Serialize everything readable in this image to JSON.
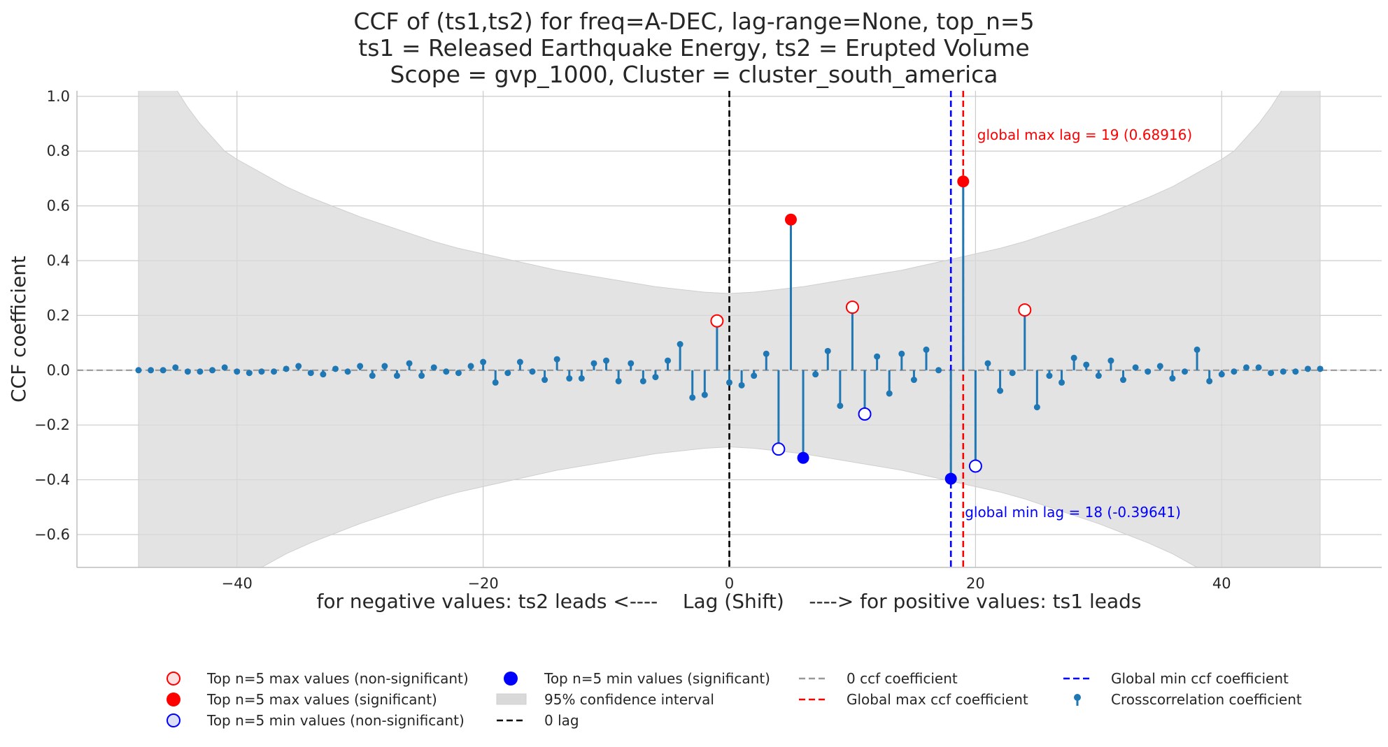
{
  "chart_data": {
    "type": "stem",
    "title_lines": [
      "CCF of (ts1,ts2) for freq=A-DEC, lag-range=None, top_n=5",
      "ts1 = Released Earthquake Energy, ts2 = Erupted Volume",
      "Scope = gvp_1000, Cluster = cluster_south_america"
    ],
    "xlabel": "for negative values: ts2 leads <----    Lag (Shift)    ----> for positive values: ts1 leads",
    "ylabel": "CCF coefficient",
    "xlim": [
      -53,
      53
    ],
    "ylim": [
      -0.72,
      1.02
    ],
    "xticks": [
      -40,
      -20,
      0,
      20,
      40
    ],
    "xtick_labels": [
      "−40",
      "−20",
      "0",
      "20",
      "40"
    ],
    "yticks": [
      -0.6,
      -0.4,
      -0.2,
      0.0,
      0.2,
      0.4,
      0.6,
      0.8,
      1.0
    ],
    "ytick_labels": [
      "−0.6",
      "−0.4",
      "−0.2",
      "0.0",
      "0.2",
      "0.4",
      "0.6",
      "0.8",
      "1.0"
    ],
    "grid": true,
    "lags": [
      -48,
      -47,
      -46,
      -45,
      -44,
      -43,
      -42,
      -41,
      -40,
      -39,
      -38,
      -37,
      -36,
      -35,
      -34,
      -33,
      -32,
      -31,
      -30,
      -29,
      -28,
      -27,
      -26,
      -25,
      -24,
      -23,
      -22,
      -21,
      -20,
      -19,
      -18,
      -17,
      -16,
      -15,
      -14,
      -13,
      -12,
      -11,
      -10,
      -9,
      -8,
      -7,
      -6,
      -5,
      -4,
      -3,
      -2,
      -1,
      0,
      1,
      2,
      3,
      4,
      5,
      6,
      7,
      8,
      9,
      10,
      11,
      12,
      13,
      14,
      15,
      16,
      17,
      18,
      19,
      20,
      21,
      22,
      23,
      24,
      25,
      26,
      27,
      28,
      29,
      30,
      31,
      32,
      33,
      34,
      35,
      36,
      37,
      38,
      39,
      40,
      41,
      42,
      43,
      44,
      45,
      46,
      47,
      48
    ],
    "ccf": [
      0.0,
      0.0,
      0.0,
      0.01,
      -0.005,
      -0.005,
      0.0,
      0.01,
      -0.005,
      -0.01,
      -0.005,
      -0.005,
      0.005,
      0.015,
      -0.01,
      -0.015,
      0.005,
      -0.005,
      0.015,
      -0.02,
      0.015,
      -0.02,
      0.025,
      -0.02,
      0.01,
      -0.005,
      -0.01,
      0.015,
      0.03,
      -0.045,
      -0.01,
      0.03,
      -0.005,
      -0.035,
      0.04,
      -0.03,
      -0.03,
      0.025,
      0.035,
      -0.04,
      0.025,
      -0.04,
      -0.025,
      0.035,
      0.095,
      -0.1,
      -0.09,
      0.18,
      -0.045,
      -0.055,
      -0.02,
      0.06,
      -0.288,
      0.55,
      -0.32,
      -0.015,
      0.07,
      -0.13,
      0.23,
      -0.16,
      0.05,
      -0.085,
      0.06,
      -0.035,
      0.075,
      0.0,
      -0.39641,
      0.68916,
      -0.35,
      0.025,
      -0.075,
      -0.01,
      0.22,
      -0.135,
      -0.02,
      -0.045,
      0.045,
      0.02,
      -0.02,
      0.035,
      -0.035,
      0.01,
      -0.005,
      0.015,
      -0.03,
      -0.005,
      0.075,
      -0.04,
      -0.015,
      -0.005,
      0.01,
      0.01,
      -0.01,
      -0.005,
      -0.005,
      0.005,
      0.005
    ],
    "confidence_interval": {
      "lags": [
        -48,
        -47,
        -46,
        -45,
        -44,
        -43,
        -42,
        -41,
        -40,
        -38,
        -36,
        -34,
        -32,
        -30,
        -28,
        -26,
        -24,
        -22,
        -20,
        -18,
        -16,
        -14,
        -12,
        -10,
        -8,
        -6,
        -4,
        -2,
        0,
        2,
        4,
        6,
        8,
        10,
        12,
        14,
        16,
        18,
        20,
        22,
        24,
        26,
        28,
        30,
        32,
        34,
        36,
        38,
        40,
        41,
        42,
        43,
        44,
        45,
        46,
        47,
        48
      ],
      "upper": [
        1.5,
        1.5,
        1.2,
        1.03,
        0.96,
        0.9,
        0.85,
        0.8,
        0.77,
        0.72,
        0.67,
        0.63,
        0.595,
        0.56,
        0.53,
        0.5,
        0.47,
        0.445,
        0.425,
        0.405,
        0.385,
        0.365,
        0.35,
        0.335,
        0.32,
        0.305,
        0.295,
        0.285,
        0.28,
        0.285,
        0.295,
        0.305,
        0.32,
        0.335,
        0.35,
        0.365,
        0.385,
        0.405,
        0.425,
        0.445,
        0.47,
        0.5,
        0.53,
        0.56,
        0.595,
        0.63,
        0.67,
        0.72,
        0.77,
        0.8,
        0.85,
        0.9,
        0.96,
        1.03,
        1.2,
        1.5,
        1.5
      ]
    },
    "top_max_nonsignificant": [
      {
        "lag": -1,
        "value": 0.18
      },
      {
        "lag": 10,
        "value": 0.23
      },
      {
        "lag": 24,
        "value": 0.22
      }
    ],
    "top_max_significant": [
      {
        "lag": 5,
        "value": 0.55
      },
      {
        "lag": 19,
        "value": 0.68916
      }
    ],
    "top_min_nonsignificant": [
      {
        "lag": 4,
        "value": -0.288
      },
      {
        "lag": 11,
        "value": -0.16
      },
      {
        "lag": 20,
        "value": -0.35
      }
    ],
    "top_min_significant": [
      {
        "lag": 6,
        "value": -0.32
      },
      {
        "lag": 18,
        "value": -0.39641
      }
    ],
    "global_max": {
      "lag": 19,
      "value": 0.68916,
      "label": "global max lag = 19 (0.68916)"
    },
    "global_min": {
      "lag": 18,
      "value": -0.39641,
      "label": "global min lag = 18 (-0.39641)"
    },
    "zero_lag": 0,
    "colors": {
      "stem": "#1f77b4",
      "max": "#ff0000",
      "min": "#0000ff",
      "ci_fill": "#d9d9d9",
      "grid": "#cccccc",
      "zero_line": "#999999",
      "zero_lag_line": "#000000"
    },
    "legend": {
      "placement": "bottom",
      "entries": [
        {
          "key": "max-nonsig",
          "label": "Top n=5 max values (non-significant)"
        },
        {
          "key": "max-sig",
          "label": "Top n=5 max values (significant)"
        },
        {
          "key": "min-nonsig",
          "label": "Top n=5 min values (non-significant)"
        },
        {
          "key": "min-sig",
          "label": "Top n=5 min values (significant)"
        },
        {
          "key": "ci",
          "label": "95% confidence interval"
        },
        {
          "key": "zero-lag",
          "label": "0 lag"
        },
        {
          "key": "zero-ccf",
          "label": "0 ccf coefficient"
        },
        {
          "key": "global-max",
          "label": "Global max ccf coefficient"
        },
        {
          "key": "global-min",
          "label": "Global min ccf coefficient"
        },
        {
          "key": "ccf",
          "label": "Crosscorrelation coefficient"
        }
      ]
    }
  }
}
